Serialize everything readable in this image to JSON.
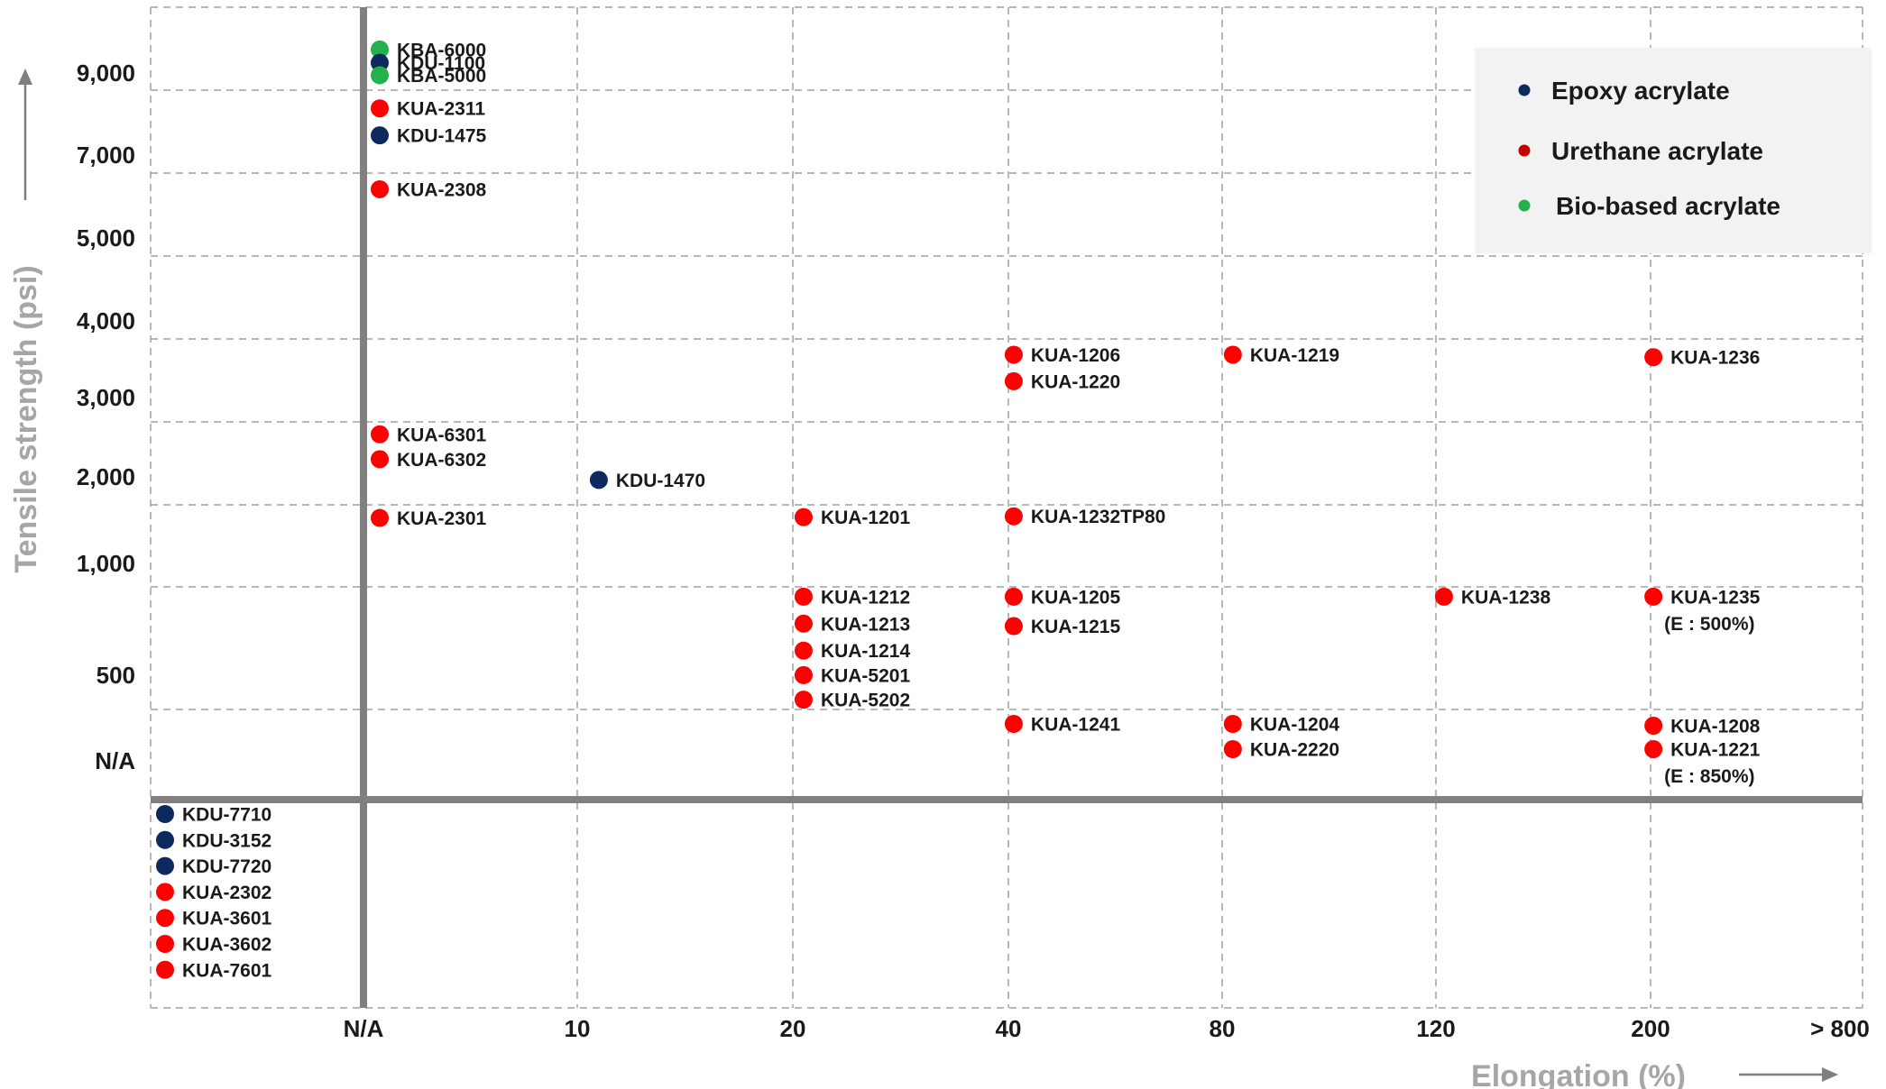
{
  "chart_data": {
    "type": "scatter",
    "xlabel": "Elongation (%)",
    "ylabel": "Tensile strength (psi)",
    "x_ticks": [
      "N/A",
      "10",
      "20",
      "40",
      "80",
      "120",
      "200",
      "> 800"
    ],
    "y_ticks": [
      "N/A",
      "500",
      "1,000",
      "2,000",
      "3,000",
      "4,000",
      "5,000",
      "7,000",
      "9,000"
    ],
    "legend": [
      {
        "name": "Epoxy acrylate",
        "color": "#0d2a5e"
      },
      {
        "name": "Urethane acrylate",
        "color": "#c00000"
      },
      {
        "name": "Bio-based acrylate",
        "color": "#22b14c"
      }
    ],
    "point_colors": {
      "epoxy": "#0d2a5e",
      "urethane": "#ff0000",
      "bio": "#22b14c"
    },
    "points": [
      {
        "label": "KBA-6000",
        "type": "bio",
        "x": "N/A",
        "y": 9980
      },
      {
        "label": "KDU-1100",
        "type": "epoxy",
        "x": "N/A",
        "y": 9660
      },
      {
        "label": "KBA-5000",
        "type": "bio",
        "x": "N/A",
        "y": 9360
      },
      {
        "label": "KUA-2311",
        "type": "urethane",
        "x": "N/A",
        "y": 8560
      },
      {
        "label": "KDU-1475",
        "type": "epoxy",
        "x": "N/A",
        "y": 7910
      },
      {
        "label": "KUA-2308",
        "type": "urethane",
        "x": "N/A",
        "y": 6610
      },
      {
        "label": "KUA-6301",
        "type": "urethane",
        "x": "N/A",
        "y": 2850
      },
      {
        "label": "KUA-6302",
        "type": "urethane",
        "x": "N/A",
        "y": 2550
      },
      {
        "label": "KUA-2301",
        "type": "urethane",
        "x": "N/A",
        "y": 1840
      },
      {
        "label": "KDU-1470",
        "type": "epoxy",
        "x": 11,
        "y": 2300
      },
      {
        "label": "KUA-1201",
        "type": "urethane",
        "x": 21,
        "y": 1850
      },
      {
        "label": "KUA-1212",
        "type": "urethane",
        "x": 21,
        "y": 960
      },
      {
        "label": "KUA-1213",
        "type": "urethane",
        "x": 21,
        "y": 850
      },
      {
        "label": "KUA-1214",
        "type": "urethane",
        "x": 21,
        "y": 740
      },
      {
        "label": "KUA-5201",
        "type": "urethane",
        "x": 21,
        "y": 640
      },
      {
        "label": "KUA-5202",
        "type": "urethane",
        "x": 21,
        "y": 540
      },
      {
        "label": "KUA-1206",
        "type": "urethane",
        "x": 41,
        "y": 3810
      },
      {
        "label": "KUA-1220",
        "type": "urethane",
        "x": 41,
        "y": 3490
      },
      {
        "label": "KUA-1232TP80",
        "type": "urethane",
        "x": 41,
        "y": 1860
      },
      {
        "label": "KUA-1205",
        "type": "urethane",
        "x": 41,
        "y": 960
      },
      {
        "label": "KUA-1215",
        "type": "urethane",
        "x": 41,
        "y": 840
      },
      {
        "label": "KUA-1241",
        "type": "urethane",
        "x": 41,
        "y": 420
      },
      {
        "label": "KUA-1219",
        "type": "urethane",
        "x": 82,
        "y": 3810
      },
      {
        "label": "KUA-1204",
        "type": "urethane",
        "x": 82,
        "y": 420
      },
      {
        "label": "KUA-2220",
        "type": "urethane",
        "x": 82,
        "y": 280
      },
      {
        "label": "KUA-1238",
        "type": "urethane",
        "x": 123,
        "y": 960
      },
      {
        "label": "KUA-1236",
        "type": "urethane",
        "x": 208,
        "y": 3780
      },
      {
        "label": "KUA-1235",
        "type": "urethane",
        "x": 208,
        "y": 960,
        "note": "(E : 500%)"
      },
      {
        "label": "KUA-1208",
        "type": "urethane",
        "x": 208,
        "y": 410
      },
      {
        "label": "KUA-1221",
        "type": "urethane",
        "x": 208,
        "y": 280,
        "note": "(E : 850%)"
      },
      {
        "label": "KDU-7710",
        "type": "epoxy",
        "x": "N/A",
        "y": "N/A"
      },
      {
        "label": "KDU-3152",
        "type": "epoxy",
        "x": "N/A",
        "y": "N/A"
      },
      {
        "label": "KDU-7720",
        "type": "epoxy",
        "x": "N/A",
        "y": "N/A"
      },
      {
        "label": "KUA-2302",
        "type": "urethane",
        "x": "N/A",
        "y": "N/A"
      },
      {
        "label": "KUA-3601",
        "type": "urethane",
        "x": "N/A",
        "y": "N/A"
      },
      {
        "label": "KUA-3602",
        "type": "urethane",
        "x": "N/A",
        "y": "N/A"
      },
      {
        "label": "KUA-7601",
        "type": "urethane",
        "x": "N/A",
        "y": "N/A"
      }
    ],
    "grid": true,
    "legend_position": "top-right"
  }
}
